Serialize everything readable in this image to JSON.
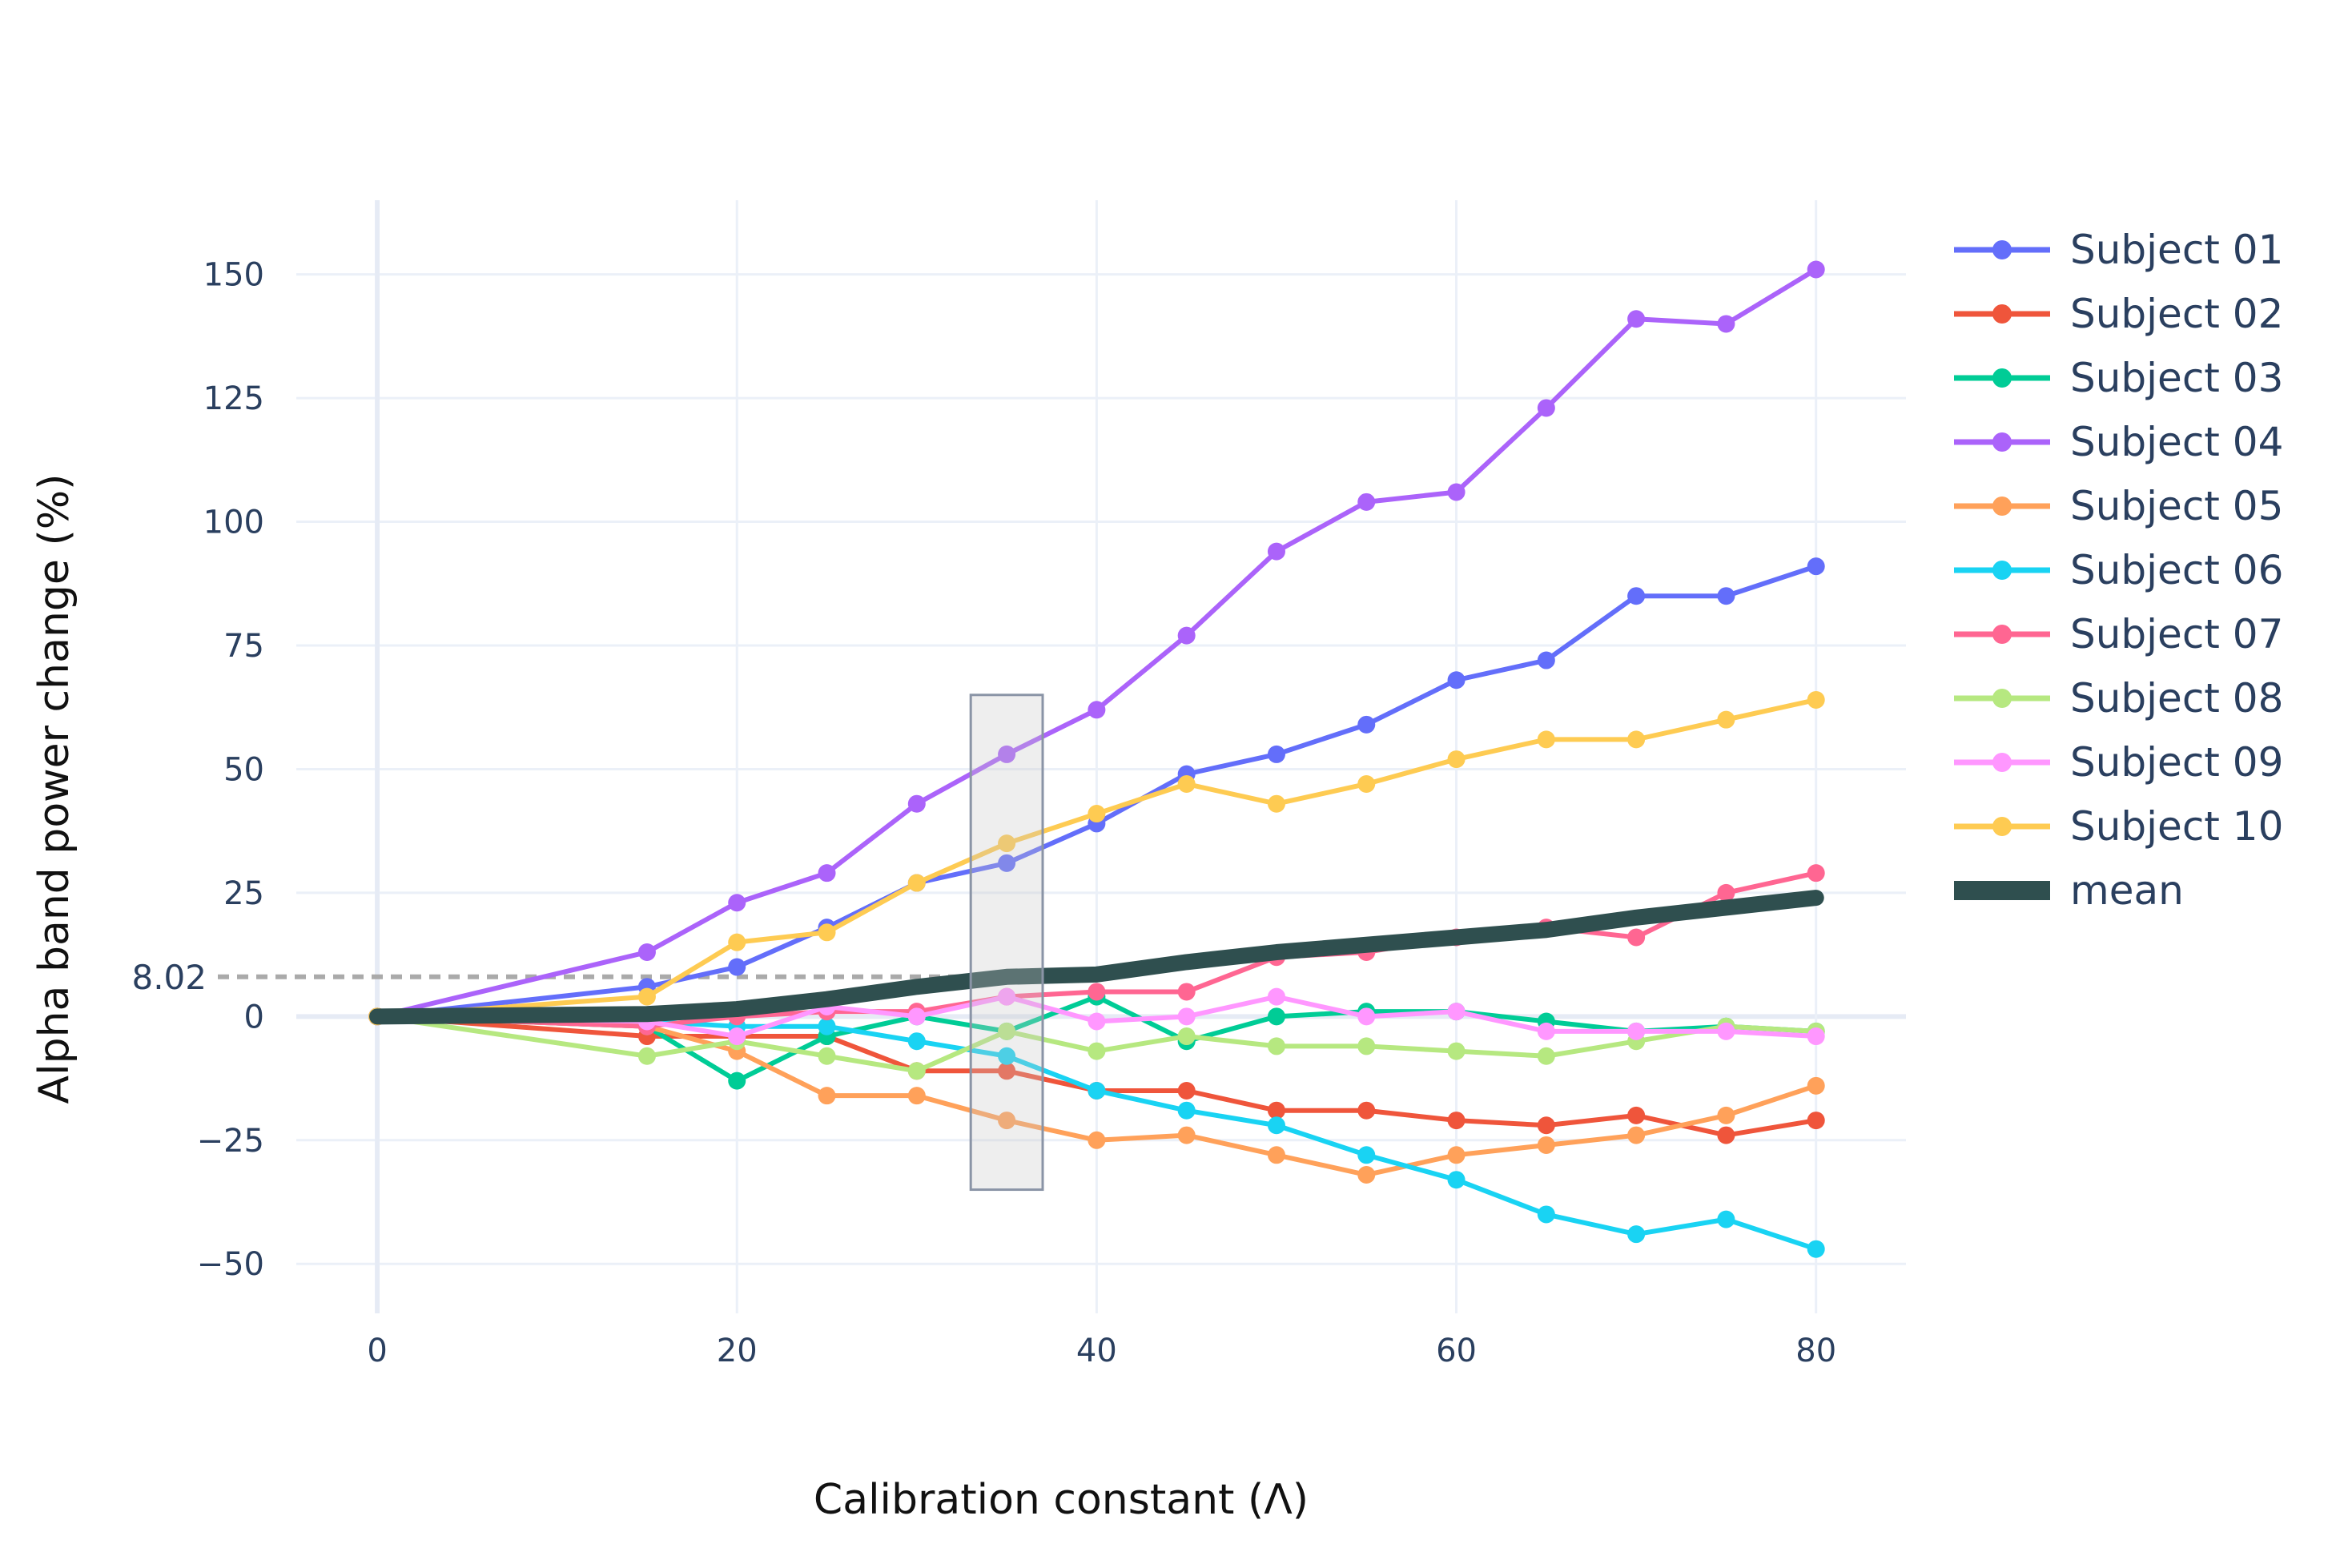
{
  "chart_data": {
    "type": "line",
    "xlabel": "Calibration constant (Λ)",
    "ylabel": "Alpha band power change (%)",
    "xlim": [
      -4.5,
      85
    ],
    "ylim": [
      -60,
      165
    ],
    "xticks": [
      0,
      20,
      40,
      60,
      80
    ],
    "yticks": [
      -50,
      -25,
      0,
      25,
      50,
      75,
      100,
      125,
      150
    ],
    "grid": true,
    "legend_position": "right",
    "reference_line": {
      "y": 8.02,
      "x_end": 35,
      "label": "8.02",
      "color": "#aaaaaa",
      "style": "dashed"
    },
    "highlight_box": {
      "x_range": [
        33,
        37
      ],
      "y_range": [
        -35,
        65
      ]
    },
    "x": [
      0,
      15,
      20,
      25,
      30,
      35,
      40,
      45,
      50,
      55,
      60,
      65,
      70,
      75,
      80
    ],
    "series": [
      {
        "name": "Subject 01",
        "color": "#636efa",
        "values": [
          0,
          6,
          10,
          18,
          27,
          31,
          39,
          49,
          53,
          59,
          68,
          72,
          85,
          85,
          91
        ]
      },
      {
        "name": "Subject 02",
        "color": "#ef553b",
        "values": [
          0,
          -4,
          -4,
          -4,
          -11,
          -11,
          -15,
          -15,
          -19,
          -19,
          -21,
          -22,
          -20,
          -24,
          -21
        ]
      },
      {
        "name": "Subject 03",
        "color": "#00cc96",
        "values": [
          0,
          -2,
          -13,
          -4,
          0,
          -3,
          4,
          -5,
          0,
          1,
          1,
          -1,
          -3,
          -2,
          -3
        ]
      },
      {
        "name": "Subject 04",
        "color": "#ab63fa",
        "values": [
          0,
          13,
          23,
          29,
          43,
          53,
          62,
          77,
          94,
          104,
          106,
          123,
          141,
          140,
          151
        ]
      },
      {
        "name": "Subject 05",
        "color": "#ffa15a",
        "values": [
          0,
          -2,
          -7,
          -16,
          -16,
          -21,
          -25,
          -24,
          -28,
          -32,
          -28,
          -26,
          -24,
          -20,
          -14
        ]
      },
      {
        "name": "Subject 06",
        "color": "#19d3f3",
        "values": [
          0,
          -1,
          -2,
          -2,
          -5,
          -8,
          -15,
          -19,
          -22,
          -28,
          -33,
          -40,
          -44,
          -41,
          -47
        ]
      },
      {
        "name": "Subject 07",
        "color": "#ff6692",
        "values": [
          0,
          -2,
          0,
          1,
          1,
          4,
          5,
          5,
          12,
          13,
          16,
          18,
          16,
          25,
          29
        ]
      },
      {
        "name": "Subject 08",
        "color": "#b6e880",
        "values": [
          0,
          -8,
          -5,
          -8,
          -11,
          -3,
          -7,
          -4,
          -6,
          -6,
          -7,
          -8,
          -5,
          -2,
          -3
        ]
      },
      {
        "name": "Subject 09",
        "color": "#ff97ff",
        "values": [
          0,
          -1,
          -4,
          2,
          0,
          4,
          -1,
          0,
          4,
          0,
          1,
          -3,
          -3,
          -3,
          -4
        ]
      },
      {
        "name": "Subject 10",
        "color": "#fecb52",
        "values": [
          0,
          4,
          15,
          17,
          27,
          35,
          41,
          47,
          43,
          47,
          52,
          56,
          56,
          60,
          64
        ]
      },
      {
        "name": "mean",
        "color": "#2f4f4f",
        "values": [
          0,
          0.5,
          1.5,
          3.5,
          6,
          8.02,
          8.5,
          11,
          13,
          14.5,
          16,
          17.5,
          20,
          22,
          24
        ],
        "markers": false,
        "width": 20
      }
    ]
  }
}
